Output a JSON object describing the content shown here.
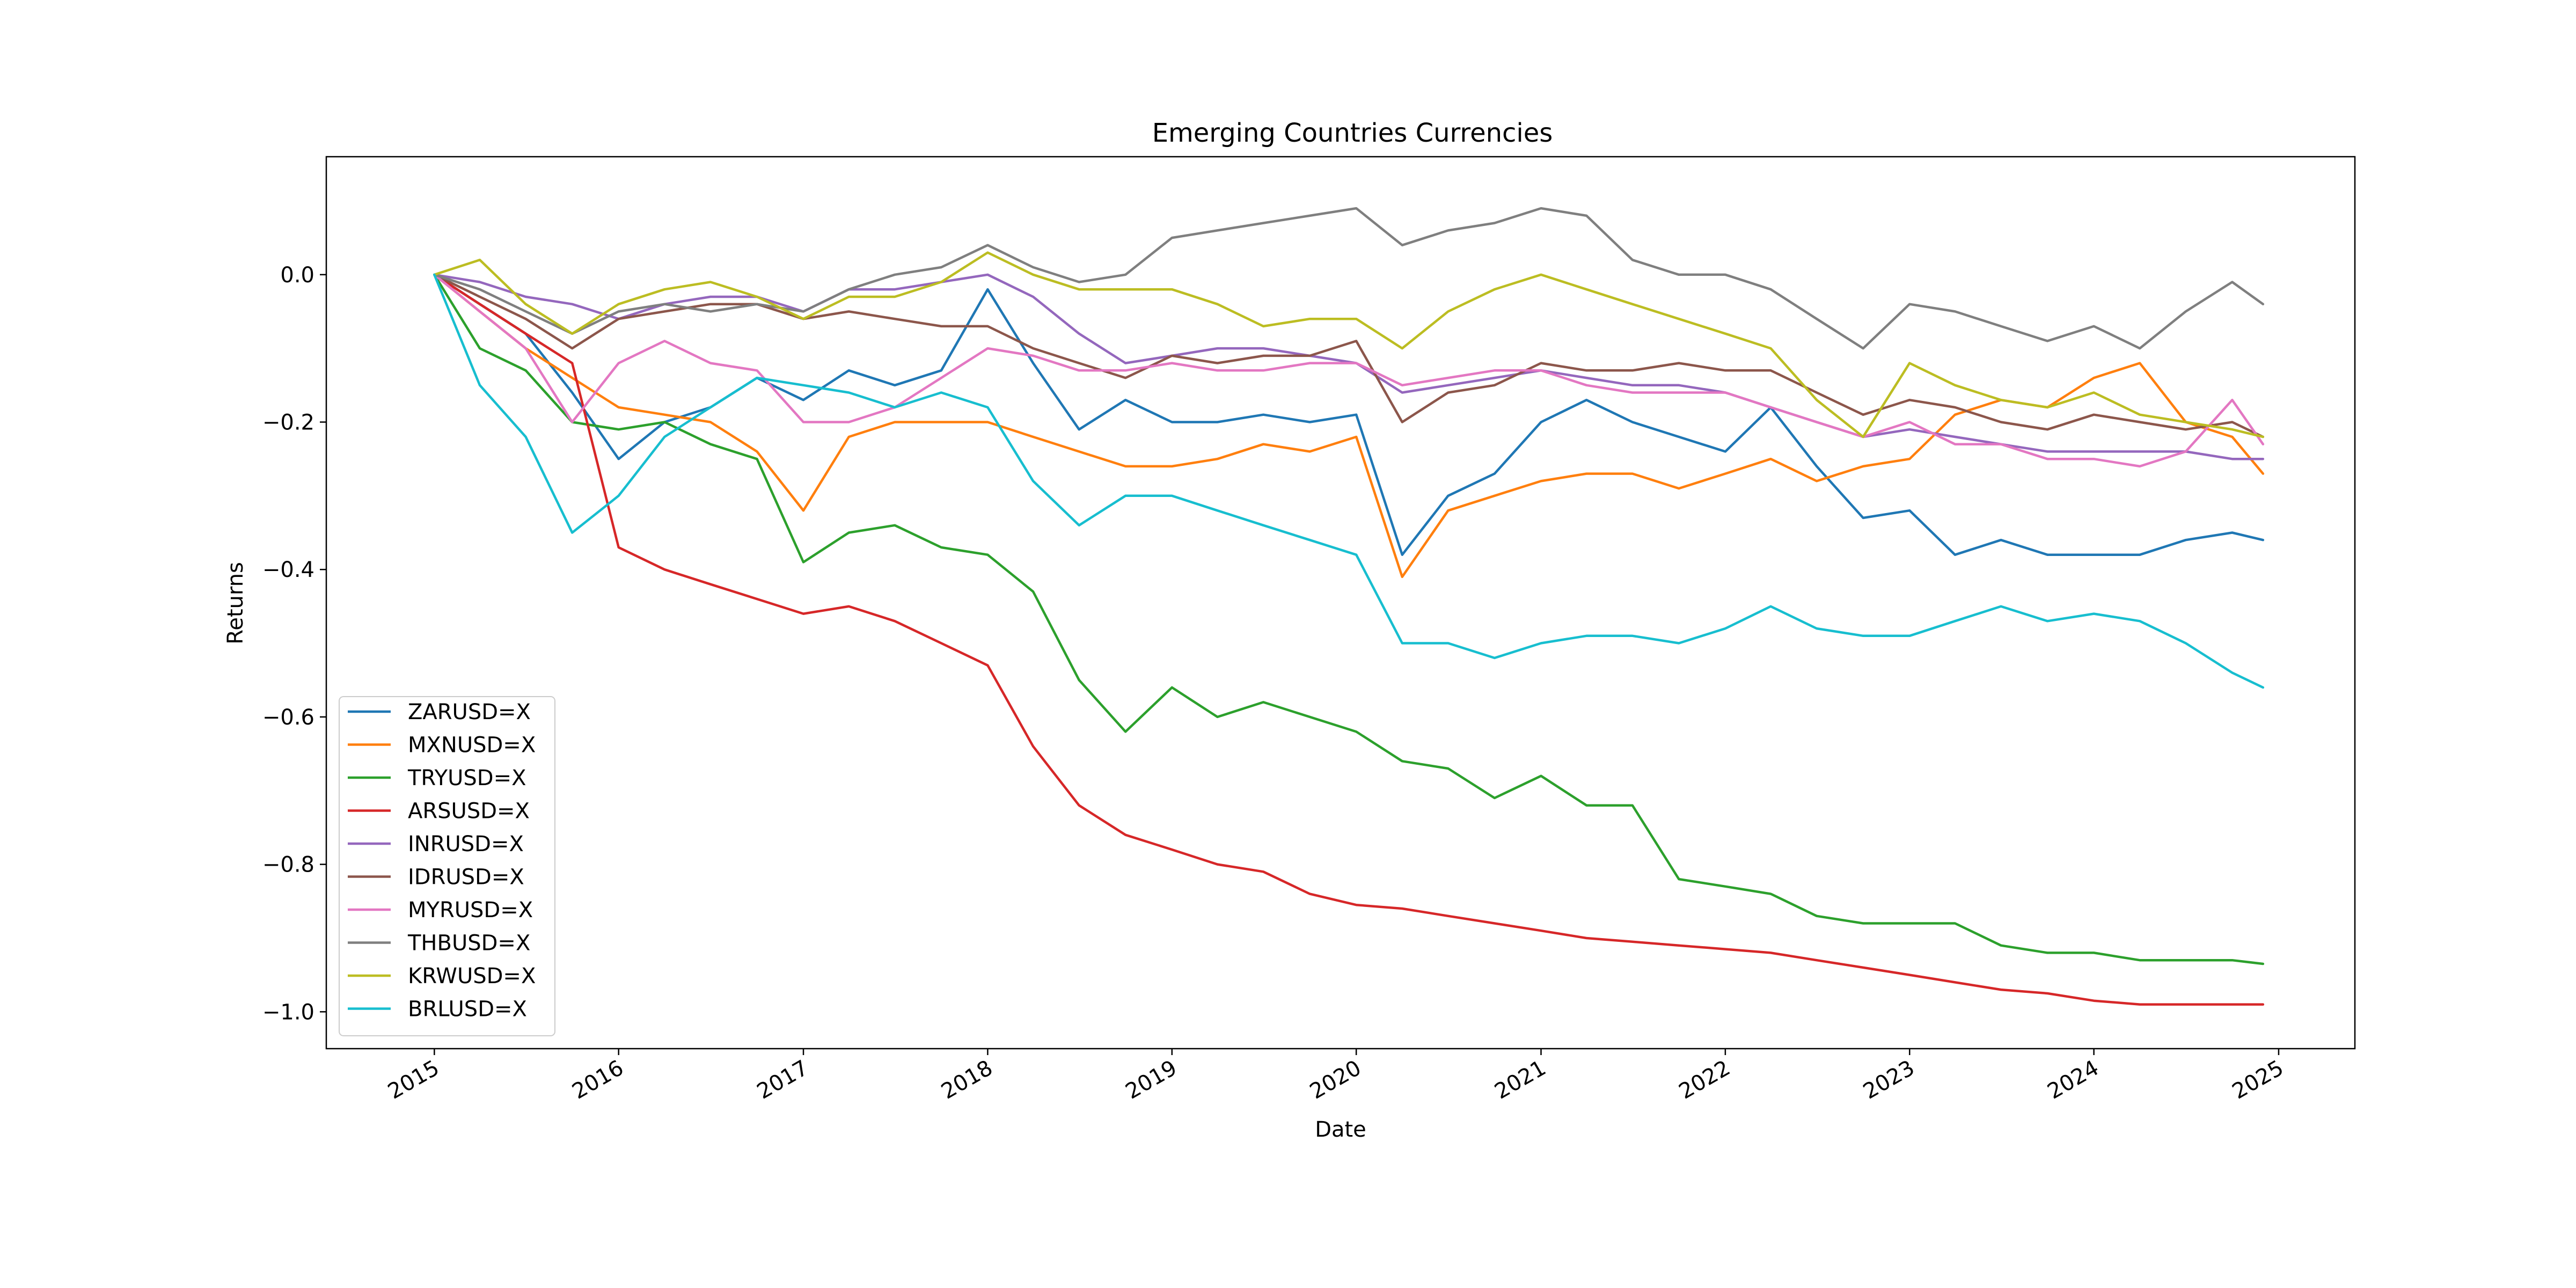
{
  "chart_data": {
    "type": "line",
    "title": "Emerging Countries Currencies",
    "xlabel": "Date",
    "ylabel": "Returns",
    "xlim": [
      "2014-06-01",
      "2025-06-01"
    ],
    "ylim": [
      -1.05,
      0.16
    ],
    "xticks": [
      {
        "label": "2015",
        "date": "2015-01-01"
      },
      {
        "label": "2016",
        "date": "2016-01-01"
      },
      {
        "label": "2017",
        "date": "2017-01-01"
      },
      {
        "label": "2018",
        "date": "2018-01-01"
      },
      {
        "label": "2019",
        "date": "2019-01-01"
      },
      {
        "label": "2020",
        "date": "2020-01-01"
      },
      {
        "label": "2021",
        "date": "2021-01-01"
      },
      {
        "label": "2022",
        "date": "2022-01-01"
      },
      {
        "label": "2023",
        "date": "2023-01-01"
      },
      {
        "label": "2024",
        "date": "2024-01-01"
      },
      {
        "label": "2025",
        "date": "2025-01-01"
      }
    ],
    "yticks": [
      {
        "label": "0.0",
        "value": 0.0
      },
      {
        "label": "−0.2",
        "value": -0.2
      },
      {
        "label": "−0.4",
        "value": -0.4
      },
      {
        "label": "−0.6",
        "value": -0.6
      },
      {
        "label": "−0.8",
        "value": -0.8
      },
      {
        "label": "−1.0",
        "value": -1.0
      }
    ],
    "grid": false,
    "legend_position": "lower-left",
    "x": [
      "2015-01",
      "2015-04",
      "2015-07",
      "2015-10",
      "2016-01",
      "2016-04",
      "2016-07",
      "2016-10",
      "2017-01",
      "2017-04",
      "2017-07",
      "2017-10",
      "2018-01",
      "2018-04",
      "2018-07",
      "2018-10",
      "2019-01",
      "2019-04",
      "2019-07",
      "2019-10",
      "2020-01",
      "2020-04",
      "2020-07",
      "2020-10",
      "2021-01",
      "2021-04",
      "2021-07",
      "2021-10",
      "2022-01",
      "2022-04",
      "2022-07",
      "2022-10",
      "2023-01",
      "2023-04",
      "2023-07",
      "2023-10",
      "2024-01",
      "2024-04",
      "2024-07",
      "2024-10",
      "2024-12"
    ],
    "series": [
      {
        "name": "ZARUSD=X",
        "color": "#1f77b4",
        "values": [
          0.0,
          -0.04,
          -0.08,
          -0.16,
          -0.25,
          -0.2,
          -0.18,
          -0.14,
          -0.17,
          -0.13,
          -0.15,
          -0.13,
          -0.02,
          -0.12,
          -0.21,
          -0.17,
          -0.2,
          -0.2,
          -0.19,
          -0.2,
          -0.19,
          -0.38,
          -0.3,
          -0.27,
          -0.2,
          -0.17,
          -0.2,
          -0.22,
          -0.24,
          -0.18,
          -0.26,
          -0.33,
          -0.32,
          -0.38,
          -0.36,
          -0.38,
          -0.38,
          -0.38,
          -0.36,
          -0.35,
          -0.36
        ]
      },
      {
        "name": "MXNUSD=X",
        "color": "#ff7f0e",
        "values": [
          0.0,
          -0.05,
          -0.1,
          -0.14,
          -0.18,
          -0.19,
          -0.2,
          -0.24,
          -0.32,
          -0.22,
          -0.2,
          -0.2,
          -0.2,
          -0.22,
          -0.24,
          -0.26,
          -0.26,
          -0.25,
          -0.23,
          -0.24,
          -0.22,
          -0.41,
          -0.32,
          -0.3,
          -0.28,
          -0.27,
          -0.27,
          -0.29,
          -0.27,
          -0.25,
          -0.28,
          -0.26,
          -0.25,
          -0.19,
          -0.17,
          -0.18,
          -0.14,
          -0.12,
          -0.2,
          -0.22,
          -0.27
        ]
      },
      {
        "name": "TRYUSD=X",
        "color": "#2ca02c",
        "values": [
          0.0,
          -0.1,
          -0.13,
          -0.2,
          -0.21,
          -0.2,
          -0.23,
          -0.25,
          -0.39,
          -0.35,
          -0.34,
          -0.37,
          -0.38,
          -0.43,
          -0.55,
          -0.62,
          -0.56,
          -0.6,
          -0.58,
          -0.6,
          -0.62,
          -0.66,
          -0.67,
          -0.71,
          -0.68,
          -0.72,
          -0.72,
          -0.82,
          -0.83,
          -0.84,
          -0.87,
          -0.88,
          -0.88,
          -0.88,
          -0.91,
          -0.92,
          -0.92,
          -0.93,
          -0.93,
          -0.93,
          -0.935
        ]
      },
      {
        "name": "ARSUSD=X",
        "color": "#d62728",
        "values": [
          0.0,
          -0.04,
          -0.08,
          -0.12,
          -0.37,
          -0.4,
          -0.42,
          -0.44,
          -0.46,
          -0.45,
          -0.47,
          -0.5,
          -0.53,
          -0.64,
          -0.72,
          -0.76,
          -0.78,
          -0.8,
          -0.81,
          -0.84,
          -0.855,
          -0.86,
          -0.87,
          -0.88,
          -0.89,
          -0.9,
          -0.905,
          -0.91,
          -0.915,
          -0.92,
          -0.93,
          -0.94,
          -0.95,
          -0.96,
          -0.97,
          -0.975,
          -0.985,
          -0.99,
          -0.99,
          -0.99,
          -0.99
        ]
      },
      {
        "name": "INRUSD=X",
        "color": "#9467bd",
        "values": [
          0.0,
          -0.01,
          -0.03,
          -0.04,
          -0.06,
          -0.04,
          -0.03,
          -0.03,
          -0.05,
          -0.02,
          -0.02,
          -0.01,
          0.0,
          -0.03,
          -0.08,
          -0.12,
          -0.11,
          -0.1,
          -0.1,
          -0.11,
          -0.12,
          -0.16,
          -0.15,
          -0.14,
          -0.13,
          -0.14,
          -0.15,
          -0.15,
          -0.16,
          -0.18,
          -0.2,
          -0.22,
          -0.21,
          -0.22,
          -0.23,
          -0.24,
          -0.24,
          -0.24,
          -0.24,
          -0.25,
          -0.25
        ]
      },
      {
        "name": "IDRUSD=X",
        "color": "#8c564b",
        "values": [
          0.0,
          -0.03,
          -0.06,
          -0.1,
          -0.06,
          -0.05,
          -0.04,
          -0.04,
          -0.06,
          -0.05,
          -0.06,
          -0.07,
          -0.07,
          -0.1,
          -0.12,
          -0.14,
          -0.11,
          -0.12,
          -0.11,
          -0.11,
          -0.09,
          -0.2,
          -0.16,
          -0.15,
          -0.12,
          -0.13,
          -0.13,
          -0.12,
          -0.13,
          -0.13,
          -0.16,
          -0.19,
          -0.17,
          -0.18,
          -0.2,
          -0.21,
          -0.19,
          -0.2,
          -0.21,
          -0.2,
          -0.22
        ]
      },
      {
        "name": "MYRUSD=X",
        "color": "#e377c2",
        "values": [
          0.0,
          -0.05,
          -0.1,
          -0.2,
          -0.12,
          -0.09,
          -0.12,
          -0.13,
          -0.2,
          -0.2,
          -0.18,
          -0.14,
          -0.1,
          -0.11,
          -0.13,
          -0.13,
          -0.12,
          -0.13,
          -0.13,
          -0.12,
          -0.12,
          -0.15,
          -0.14,
          -0.13,
          -0.13,
          -0.15,
          -0.16,
          -0.16,
          -0.16,
          -0.18,
          -0.2,
          -0.22,
          -0.2,
          -0.23,
          -0.23,
          -0.25,
          -0.25,
          -0.26,
          -0.24,
          -0.17,
          -0.23
        ]
      },
      {
        "name": "THBUSD=X",
        "color": "#7f7f7f",
        "values": [
          0.0,
          -0.02,
          -0.05,
          -0.08,
          -0.05,
          -0.04,
          -0.05,
          -0.04,
          -0.05,
          -0.02,
          0.0,
          0.01,
          0.04,
          0.01,
          -0.01,
          0.0,
          0.05,
          0.06,
          0.07,
          0.08,
          0.09,
          0.04,
          0.06,
          0.07,
          0.09,
          0.08,
          0.02,
          0.0,
          0.0,
          -0.02,
          -0.06,
          -0.1,
          -0.04,
          -0.05,
          -0.07,
          -0.09,
          -0.07,
          -0.1,
          -0.05,
          -0.01,
          -0.04
        ]
      },
      {
        "name": "KRWUSD=X",
        "color": "#bcbd22",
        "values": [
          0.0,
          0.02,
          -0.04,
          -0.08,
          -0.04,
          -0.02,
          -0.01,
          -0.03,
          -0.06,
          -0.03,
          -0.03,
          -0.01,
          0.03,
          0.0,
          -0.02,
          -0.02,
          -0.02,
          -0.04,
          -0.07,
          -0.06,
          -0.06,
          -0.1,
          -0.05,
          -0.02,
          0.0,
          -0.02,
          -0.04,
          -0.06,
          -0.08,
          -0.1,
          -0.17,
          -0.22,
          -0.12,
          -0.15,
          -0.17,
          -0.18,
          -0.16,
          -0.19,
          -0.2,
          -0.21,
          -0.22
        ]
      },
      {
        "name": "BRLUSD=X",
        "color": "#17becf",
        "values": [
          0.0,
          -0.15,
          -0.22,
          -0.35,
          -0.3,
          -0.22,
          -0.18,
          -0.14,
          -0.15,
          -0.16,
          -0.18,
          -0.16,
          -0.18,
          -0.28,
          -0.34,
          -0.3,
          -0.3,
          -0.32,
          -0.34,
          -0.36,
          -0.38,
          -0.5,
          -0.5,
          -0.52,
          -0.5,
          -0.49,
          -0.49,
          -0.5,
          -0.48,
          -0.45,
          -0.48,
          -0.49,
          -0.49,
          -0.47,
          -0.45,
          -0.47,
          -0.46,
          -0.47,
          -0.5,
          -0.54,
          -0.56
        ]
      }
    ]
  }
}
